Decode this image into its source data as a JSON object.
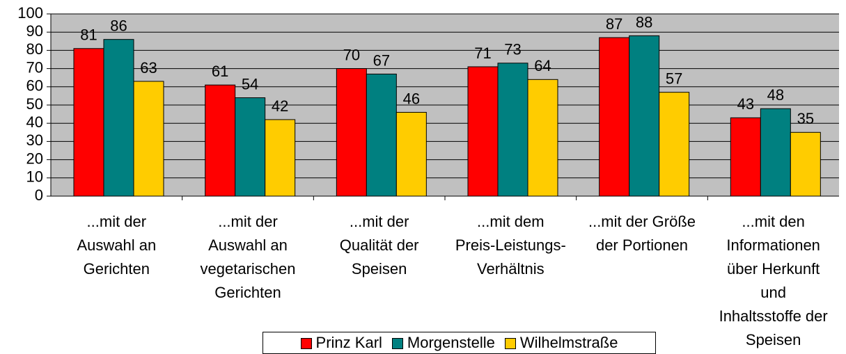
{
  "chart_data": {
    "type": "bar",
    "categories": [
      "...mit der Auswahl an Gerichten",
      "...mit der Auswahl an vegetarischen Gerichten",
      "...mit der Qualität der Speisen",
      "...mit dem Preis-Leistungs-Verhältnis",
      "...mit der Größe der Portionen",
      "...mit den Informationen über Herkunft und Inhaltsstoffe der Speisen"
    ],
    "series": [
      {
        "name": "Prinz Karl",
        "color": "#ff0000",
        "values": [
          81,
          61,
          70,
          71,
          87,
          43
        ]
      },
      {
        "name": "Morgenstelle",
        "color": "#008080",
        "values": [
          86,
          54,
          67,
          73,
          88,
          48
        ]
      },
      {
        "name": "Wilhelmstraße",
        "color": "#ffcc00",
        "values": [
          63,
          42,
          46,
          64,
          57,
          35
        ]
      }
    ],
    "ylim": [
      0,
      100
    ],
    "yticks": [
      0,
      10,
      20,
      30,
      40,
      50,
      60,
      70,
      80,
      90,
      100
    ],
    "grid": true,
    "plot_background": "#c0c0c0",
    "legend": "bottom"
  }
}
